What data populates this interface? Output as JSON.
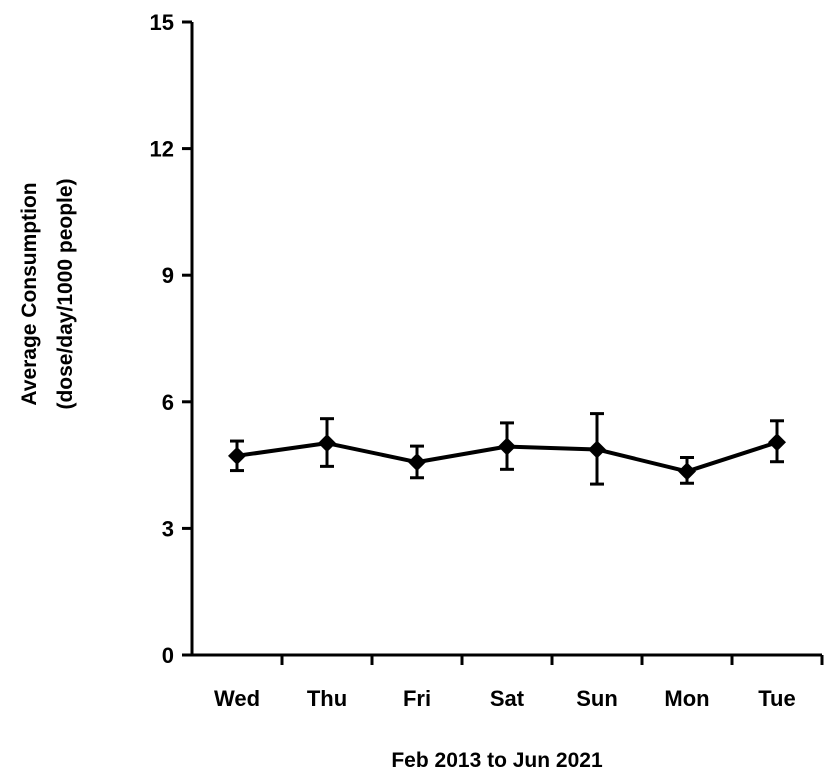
{
  "chart_data": {
    "type": "line",
    "title": "",
    "xlabel": "Feb 2013 to Jun 2021",
    "ylabel_line1": "Average Consumption",
    "ylabel_line2": "(dose/day/1000 people)",
    "categories": [
      "Wed",
      "Thu",
      "Fri",
      "Sat",
      "Sun",
      "Mon",
      "Tue"
    ],
    "series": [
      {
        "values": [
          4.72,
          5.02,
          4.57,
          4.94,
          4.87,
          4.35,
          5.04
        ],
        "err_low": [
          4.37,
          4.47,
          4.2,
          4.4,
          4.05,
          4.07,
          4.58
        ],
        "err_high": [
          5.07,
          5.6,
          4.95,
          5.5,
          5.72,
          4.68,
          5.55
        ]
      }
    ],
    "y_ticks": [
      "0",
      "3",
      "6",
      "9",
      "12",
      "15"
    ],
    "ylim": [
      0,
      15
    ],
    "grid": false,
    "legend": "none",
    "colors": {
      "line": "#000000",
      "axis": "#000000"
    }
  }
}
